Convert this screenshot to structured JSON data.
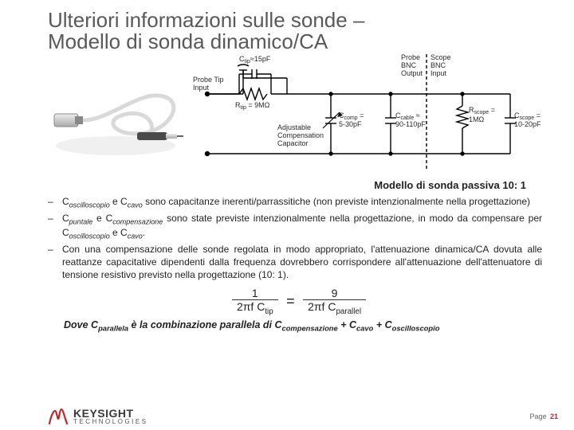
{
  "title_line1": "Ulteriori informazioni sulle sonde –",
  "title_line2": "Modello di sonda dinamico/CA",
  "caption": "Modello di sonda passiva 10: 1",
  "schematic": {
    "labels": {
      "probe_tip_input": "Probe Tip\nInput",
      "ctip": "Ctip≈15pF",
      "rtip": "Rtip = 9MΩ",
      "adjustable": "Adjustable\nCompensation\nCapacitor",
      "ccomp": "Ccomp =\n5-30pF",
      "ccable": "Ccable ≈\n90-110pF",
      "probe_bnc": "Probe\nBNC\nOutput",
      "scope_bnc": "Scope\nBNC\nInput",
      "rscope": "Rscope =\n1MΩ",
      "cscope": "Cscope =\n10-20pF"
    },
    "colors": {
      "wire": "#000000",
      "text": "#2a2a2a",
      "dashed": "#000000"
    }
  },
  "bullets": [
    {
      "parts": [
        {
          "t": "C",
          "sub": "oscilloscopio"
        },
        {
          "t": " e "
        },
        {
          "t": "C",
          "sub": "cavo"
        },
        {
          "t": " sono capacitanze inerenti/parrassitiche (non previste intenzionalmente nella progettazione)"
        }
      ]
    },
    {
      "parts": [
        {
          "t": "C",
          "sub": "puntale"
        },
        {
          "t": " e "
        },
        {
          "t": "C",
          "sub": "compensazione"
        },
        {
          "t": " sono state previste intenzionalmente nella progettazione, in modo da compensare per "
        },
        {
          "t": "C",
          "sub": "oscilloscopio"
        },
        {
          "t": " e "
        },
        {
          "t": "C",
          "sub": "cavo"
        },
        {
          "t": "."
        }
      ]
    },
    {
      "parts": [
        {
          "t": "Con una compensazione delle sonde regolata in modo appropriato, l'attenuazione dinamica/CA dovuta alle reattanze capacitative dipendenti dalla frequenza dovrebbero corrispondere all'attenuazione dell'attenuatore di tensione resistivo previsto nella progettazione (10: 1)."
        }
      ]
    }
  ],
  "equation": {
    "lhs_num": "1",
    "lhs_den_prefix": "2πf C",
    "lhs_den_sub": "tip",
    "rhs_num": "9",
    "rhs_den_prefix": "2πf C",
    "rhs_den_sub": "parallel"
  },
  "dove": {
    "prefix": "Dove ",
    "cp": "C",
    "cp_sub": "parallela",
    "mid": " è la combinazione parallela di ",
    "c1": "C",
    "c1_sub": "compensazione",
    "plus": " + ",
    "c2": "C",
    "c2_sub": "cavo",
    "c3": "C",
    "c3_sub": "oscilloscopio"
  },
  "footer": {
    "brand_line1": "KEYSIGHT",
    "brand_line2": "TECHNOLOGIES",
    "page_label": "Page",
    "page_number": "21",
    "brand_color": "#c1272d"
  }
}
